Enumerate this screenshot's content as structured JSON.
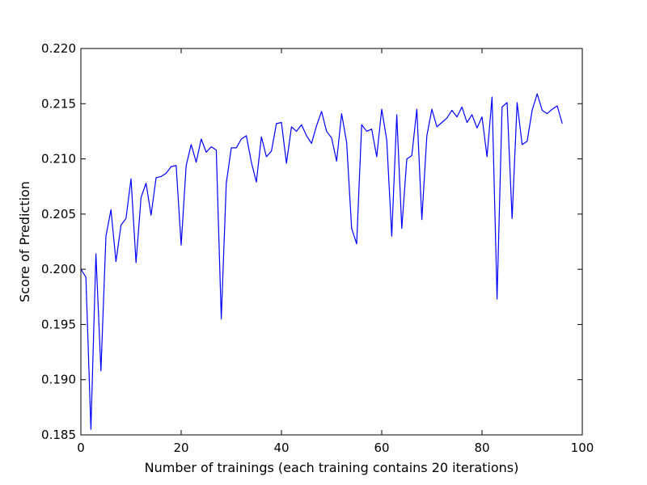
{
  "chart_data": {
    "type": "line",
    "title": "",
    "xlabel": "Number of trainings (each training contains 20 iterations)",
    "ylabel": "Score of Prediction",
    "xlim": [
      0,
      100
    ],
    "ylim": [
      0.185,
      0.22
    ],
    "xticks": [
      0,
      20,
      40,
      60,
      80,
      100
    ],
    "xtick_labels": [
      "0",
      "20",
      "40",
      "60",
      "80",
      "100"
    ],
    "yticks": [
      0.185,
      0.19,
      0.195,
      0.2,
      0.205,
      0.21,
      0.215,
      0.22
    ],
    "ytick_labels": [
      "0.185",
      "0.190",
      "0.195",
      "0.200",
      "0.205",
      "0.210",
      "0.215",
      "0.220"
    ],
    "grid": false,
    "legend": false,
    "colors": {
      "line": "#0000ff",
      "axes": "#000000",
      "background": "#ffffff"
    },
    "series": [
      {
        "values": [
          0.2,
          0.1993,
          0.1855,
          0.2014,
          0.1908,
          0.203,
          0.2054,
          0.2007,
          0.204,
          0.2046,
          0.2082,
          0.2006,
          0.2065,
          0.2078,
          0.2049,
          0.2083,
          0.2084,
          0.2087,
          0.2093,
          0.2094,
          0.2022,
          0.2094,
          0.2113,
          0.2097,
          0.2118,
          0.2106,
          0.2111,
          0.2108,
          0.1955,
          0.2078,
          0.211,
          0.211,
          0.2118,
          0.2121,
          0.2097,
          0.2079,
          0.212,
          0.2102,
          0.2107,
          0.2132,
          0.2133,
          0.2096,
          0.2129,
          0.2125,
          0.2131,
          0.2121,
          0.2114,
          0.213,
          0.2143,
          0.2125,
          0.2119,
          0.2098,
          0.2141,
          0.2115,
          0.2037,
          0.2023,
          0.2131,
          0.2125,
          0.2127,
          0.2102,
          0.2145,
          0.2117,
          0.203,
          0.214,
          0.2037,
          0.21,
          0.2103,
          0.2145,
          0.2045,
          0.2121,
          0.2145,
          0.2129,
          0.2133,
          0.2137,
          0.2144,
          0.2138,
          0.2147,
          0.2133,
          0.214,
          0.2128,
          0.2138,
          0.2102,
          0.2156,
          0.1973,
          0.2147,
          0.2151,
          0.2046,
          0.2151,
          0.2113,
          0.2116,
          0.2144,
          0.2159,
          0.2144,
          0.2141,
          0.2145,
          0.2148,
          0.2132
        ]
      }
    ]
  }
}
